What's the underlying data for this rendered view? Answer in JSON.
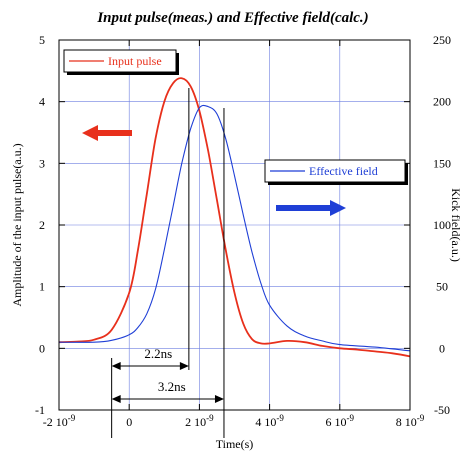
{
  "chart_data": {
    "type": "line",
    "title": "Input pulse(meas.) and Effective field(calc.)",
    "xlabel": "Time(s)",
    "ylabel_left": "Amplitude of the input pulse(a.u.)",
    "ylabel_right": "Kick field(a.u.)",
    "xlim": [
      -2e-09,
      8e-09
    ],
    "ylim_left": [
      -1,
      5
    ],
    "ylim_right": [
      -50,
      250
    ],
    "x_ticks": [
      {
        "value": -2e-09,
        "label": "-2 10-9",
        "mantissa": "-2 10",
        "exp": "-9"
      },
      {
        "value": 0,
        "label": "0",
        "mantissa": "0",
        "exp": ""
      },
      {
        "value": 2e-09,
        "label": "2 10-9",
        "mantissa": "2 10",
        "exp": "-9"
      },
      {
        "value": 4e-09,
        "label": "4 10-9",
        "mantissa": "4 10",
        "exp": "-9"
      },
      {
        "value": 6e-09,
        "label": "6 10-9",
        "mantissa": "6 10",
        "exp": "-9"
      },
      {
        "value": 8e-09,
        "label": "8 10-9",
        "mantissa": "8 10",
        "exp": "-9"
      }
    ],
    "y_left_ticks": [
      "-1",
      "0",
      "1",
      "2",
      "3",
      "4",
      "5"
    ],
    "y_right_ticks": [
      "-50",
      "0",
      "50",
      "100",
      "150",
      "200",
      "250"
    ],
    "grid": true,
    "series": [
      {
        "name": "Input pulse",
        "axis": "left",
        "color": "#e8301c",
        "x": [
          -2e-09,
          -1.5e-09,
          -1e-09,
          -5e-10,
          0,
          2.5e-10,
          5e-10,
          7.5e-10,
          1e-09,
          1.25e-09,
          1.5e-09,
          1.75e-09,
          2e-09,
          2.25e-09,
          2.5e-09,
          2.75e-09,
          3e-09,
          3.25e-09,
          3.5e-09,
          3.75e-09,
          4e-09,
          4.5e-09,
          5e-09,
          5.5e-09,
          6e-09,
          6.5e-09,
          7e-09,
          7.5e-09,
          8e-09
        ],
        "values": [
          0.1,
          0.11,
          0.14,
          0.3,
          0.9,
          1.6,
          2.5,
          3.4,
          4.0,
          4.3,
          4.38,
          4.25,
          3.85,
          3.2,
          2.4,
          1.6,
          0.9,
          0.4,
          0.15,
          0.08,
          0.08,
          0.12,
          0.1,
          0.04,
          0.0,
          -0.02,
          -0.05,
          -0.08,
          -0.13
        ]
      },
      {
        "name": "Effective field",
        "axis": "right",
        "color": "#1f3fd6",
        "x": [
          -2e-09,
          -1e-09,
          -5e-10,
          0,
          2.5e-10,
          5e-10,
          7.5e-10,
          1e-09,
          1.25e-09,
          1.5e-09,
          1.75e-09,
          2e-09,
          2.25e-09,
          2.5e-09,
          2.75e-09,
          3e-09,
          3.25e-09,
          3.5e-09,
          3.75e-09,
          4e-09,
          4.5e-09,
          5e-09,
          5.5e-09,
          6e-09,
          7e-09,
          8e-09
        ],
        "values": [
          5,
          5,
          6.5,
          11,
          17,
          28,
          48,
          80,
          115,
          150,
          178,
          195,
          196,
          190,
          170,
          140,
          108,
          78,
          53,
          35,
          18,
          10,
          6,
          3,
          1,
          -2
        ]
      }
    ],
    "legend": [
      {
        "name": "Input pulse",
        "color": "#e8301c",
        "placement": "top-left"
      },
      {
        "name": "Effective field",
        "color": "#1f3fd6",
        "placement": "middle-right"
      }
    ],
    "annotations": [
      {
        "text": "2.2ns",
        "from_x": -5e-10,
        "to_x": 1.7e-09
      },
      {
        "text": "3.2ns",
        "from_x": -5e-10,
        "to_x": 2.7e-09
      }
    ],
    "arrows": [
      {
        "direction": "left",
        "color": "#e8301c"
      },
      {
        "direction": "right",
        "color": "#1f3fd6"
      }
    ]
  }
}
